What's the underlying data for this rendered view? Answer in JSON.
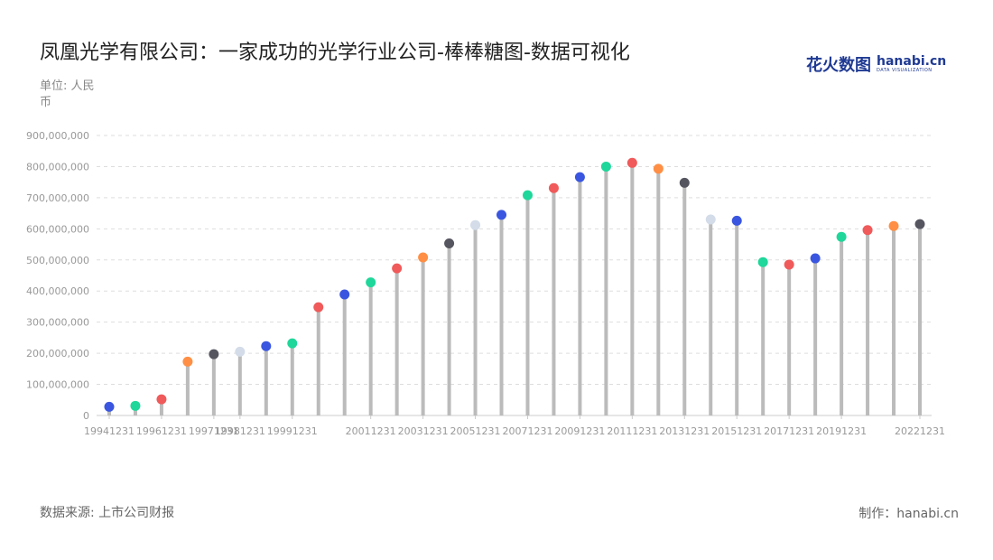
{
  "title": "凤凰光学有限公司：一家成功的光学行业公司-棒棒糖图-数据可视化",
  "unit_label": "单位: 人民币",
  "source_label": "数据来源: 上市公司财报",
  "maker_label": "制作：hanabi.cn",
  "logo": {
    "cn_1": "花火",
    "cn_2": "数图",
    "en": "hanabi.cn",
    "en_sub": "DATA VISUALIZATION"
  },
  "chart_data": {
    "type": "lollipop",
    "y_ticks": [
      "0",
      "100,000,000",
      "200,000,000",
      "300,000,000",
      "400,000,000",
      "500,000,000",
      "600,000,000",
      "700,000,000",
      "800,000,000",
      "900,000,000"
    ],
    "ylim": [
      0,
      900000000
    ],
    "grid": true,
    "x_tick_labels": [
      "19941231",
      "19961231",
      "19971231",
      "19981231",
      "19991231",
      "20011231",
      "20031231",
      "20051231",
      "20071231",
      "20091231",
      "20111231",
      "20131231",
      "20151231",
      "20171231",
      "20191231",
      "20221231"
    ],
    "categories": [
      "19941231",
      "19951231",
      "19961231",
      "19961231",
      "19971231",
      "19981231",
      "19981231",
      "19991231",
      "19991231",
      "20001231",
      "20011231",
      "20021231",
      "20031231",
      "20041231",
      "20051231",
      "20061231",
      "20071231",
      "20081231",
      "20091231",
      "20101231",
      "20111231",
      "20121231",
      "20131231",
      "20141231",
      "20151231",
      "20161231",
      "20171231",
      "20181231",
      "20191231",
      "20201231",
      "20211231",
      "20221231"
    ],
    "values": [
      28000000,
      31000000,
      52000000,
      173000000,
      197000000,
      205000000,
      223000000,
      232000000,
      348000000,
      389000000,
      428000000,
      473000000,
      508000000,
      553000000,
      612000000,
      645000000,
      708000000,
      731000000,
      766000000,
      800000000,
      812000000,
      793000000,
      748000000,
      630000000,
      626000000,
      493000000,
      485000000,
      505000000,
      574000000,
      596000000,
      609000000,
      615000000
    ],
    "dot_colors": [
      "#3a56e0",
      "#1fd79a",
      "#f05a5a",
      "#ff8f45",
      "#555560",
      "#d3dce8",
      "#3a56e0",
      "#1fd79a",
      "#f05a5a",
      "#3a56e0",
      "#1fd79a",
      "#f05a5a",
      "#ff8f45",
      "#555560",
      "#d3dce8",
      "#3a56e0",
      "#1fd79a",
      "#f05a5a",
      "#3a56e0",
      "#1fd79a",
      "#f05a5a",
      "#ff8f45",
      "#555560",
      "#d3dce8",
      "#3a56e0",
      "#1fd79a",
      "#f05a5a",
      "#3a56e0",
      "#1fd79a",
      "#f05a5a",
      "#ff8f45",
      "#555560"
    ],
    "stem_color": "#bbbbbb"
  }
}
